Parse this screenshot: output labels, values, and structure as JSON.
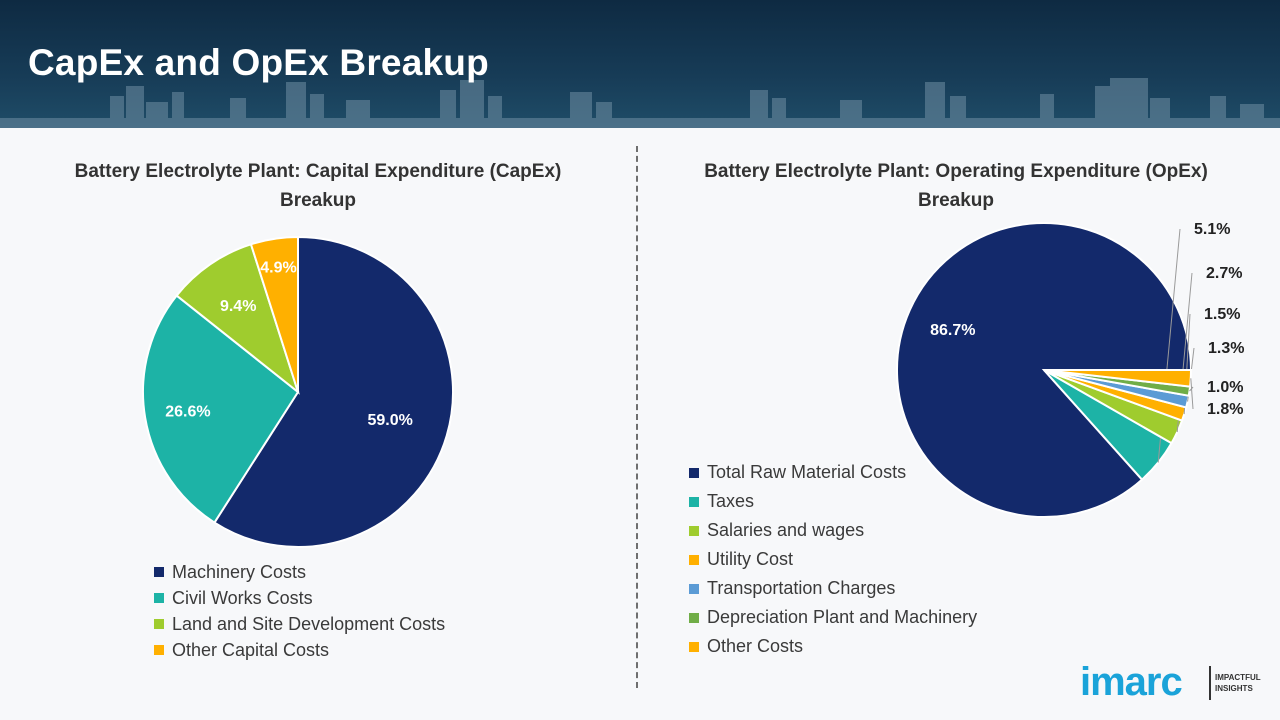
{
  "header": {
    "title": "CapEx and OpEx Breakup"
  },
  "logo": {
    "word": "imarc",
    "tag_line1": "IMPACTFUL",
    "tag_line2": "INSIGHTS"
  },
  "chart_data": [
    {
      "type": "pie",
      "title_line1": "Battery Electrolyte Plant: Capital Expenditure (CapEx)",
      "title_line2": "Breakup",
      "categories": [
        "Machinery Costs",
        "Civil Works Costs",
        "Land and Site Development Costs",
        "Other Capital Costs"
      ],
      "values": [
        59.0,
        26.6,
        9.4,
        4.9
      ],
      "labels": [
        "59.0%",
        "26.6%",
        "9.4%",
        "4.9%"
      ],
      "colors": [
        "#13296b",
        "#1db3a6",
        "#9fcc2e",
        "#ffb000"
      ],
      "start": "12 o'clock",
      "direction": "clockwise",
      "legend_position": "bottom-left"
    },
    {
      "type": "pie",
      "title_line1": "Battery Electrolyte Plant: Operating Expenditure (OpEx)",
      "title_line2": "Breakup",
      "categories": [
        "Total Raw Material Costs",
        "Taxes",
        "Salaries and wages",
        "Utility Cost",
        "Transportation Charges",
        "Depreciation Plant and Machinery",
        "Other Costs"
      ],
      "values": [
        86.7,
        5.1,
        2.7,
        1.5,
        1.3,
        1.0,
        1.8
      ],
      "labels": [
        "86.7%",
        "5.1%",
        "2.7%",
        "1.5%",
        "1.3%",
        "1.0%",
        "1.8%"
      ],
      "colors": [
        "#13296b",
        "#1db3a6",
        "#9fcc2e",
        "#ffb000",
        "#5b9bd5",
        "#70ad47",
        "#ffb000"
      ],
      "start": "3 o'clock",
      "direction": "counterclockwise",
      "legend_position": "bottom-left"
    }
  ]
}
